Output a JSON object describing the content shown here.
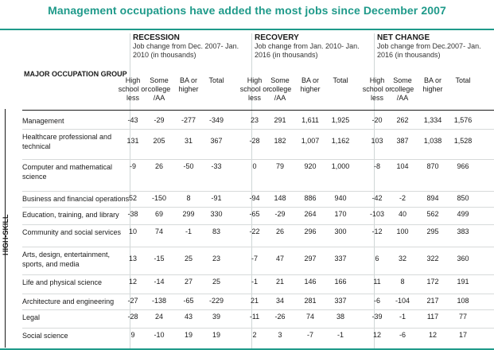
{
  "title": "Management occupations have added the most jobs since December 2007",
  "groups": {
    "recession": {
      "heading": "RECESSION",
      "sub": "Job change from Dec. 2007- Jan. 2010 (in thousands)"
    },
    "recovery": {
      "heading": "RECOVERY",
      "sub": "Job change from Jan. 2010- Jan. 2016 (in thousands)"
    },
    "net": {
      "heading": "NET CHANGE",
      "sub": "Job change from Dec.2007- Jan. 2016 (in thousands)"
    }
  },
  "major_label": "MAJOR OCCUPATION GROUP",
  "side_label": "HIGH-SKILL",
  "col_headers": [
    "High school or less",
    "Some college /AA",
    "BA or higher",
    "Total"
  ],
  "rows": [
    {
      "label": "Management",
      "values": [
        "-43",
        "-29",
        "-277",
        "-349",
        "23",
        "291",
        "1,611",
        "1,925",
        "-20",
        "262",
        "1,334",
        "1,576"
      ]
    },
    {
      "label": "Healthcare professional and technical",
      "values": [
        "131",
        "205",
        "31",
        "367",
        "-28",
        "182",
        "1,007",
        "1,162",
        "103",
        "387",
        "1,038",
        "1,528"
      ]
    },
    {
      "label": "Computer and mathematical science",
      "values": [
        "-9",
        "26",
        "-50",
        "-33",
        "0",
        "79",
        "920",
        "1,000",
        "-8",
        "104",
        "870",
        "966"
      ]
    },
    {
      "label": "Business and financial operations",
      "values": [
        "52",
        "-150",
        "8",
        "-91",
        "-94",
        "148",
        "886",
        "940",
        "-42",
        "-2",
        "894",
        "850"
      ]
    },
    {
      "label": "Education, training, and library",
      "values": [
        "-38",
        "69",
        "299",
        "330",
        "-65",
        "-29",
        "264",
        "170",
        "-103",
        "40",
        "562",
        "499"
      ]
    },
    {
      "label": "Community and social services",
      "values": [
        "10",
        "74",
        "-1",
        "83",
        "-22",
        "26",
        "296",
        "300",
        "-12",
        "100",
        "295",
        "383"
      ]
    },
    {
      "label": "Arts, design, entertainment, sports, and media",
      "values": [
        "13",
        "-15",
        "25",
        "23",
        "-7",
        "47",
        "297",
        "337",
        "6",
        "32",
        "322",
        "360"
      ]
    },
    {
      "label": "Life and physical science",
      "values": [
        "12",
        "-14",
        "27",
        "25",
        "-1",
        "21",
        "146",
        "166",
        "11",
        "8",
        "172",
        "191"
      ]
    },
    {
      "label": "Architecture and engineering",
      "values": [
        "-27",
        "-138",
        "-65",
        "-229",
        "21",
        "34",
        "281",
        "337",
        "-6",
        "-104",
        "217",
        "108"
      ]
    },
    {
      "label": "Legal",
      "values": [
        "-28",
        "24",
        "43",
        "39",
        "-11",
        "-26",
        "74",
        "38",
        "-39",
        "-1",
        "117",
        "77"
      ]
    },
    {
      "label": "Social science",
      "values": [
        "9",
        "-10",
        "19",
        "19",
        "2",
        "3",
        "-7",
        "-1",
        "12",
        "-6",
        "12",
        "17"
      ]
    }
  ]
}
